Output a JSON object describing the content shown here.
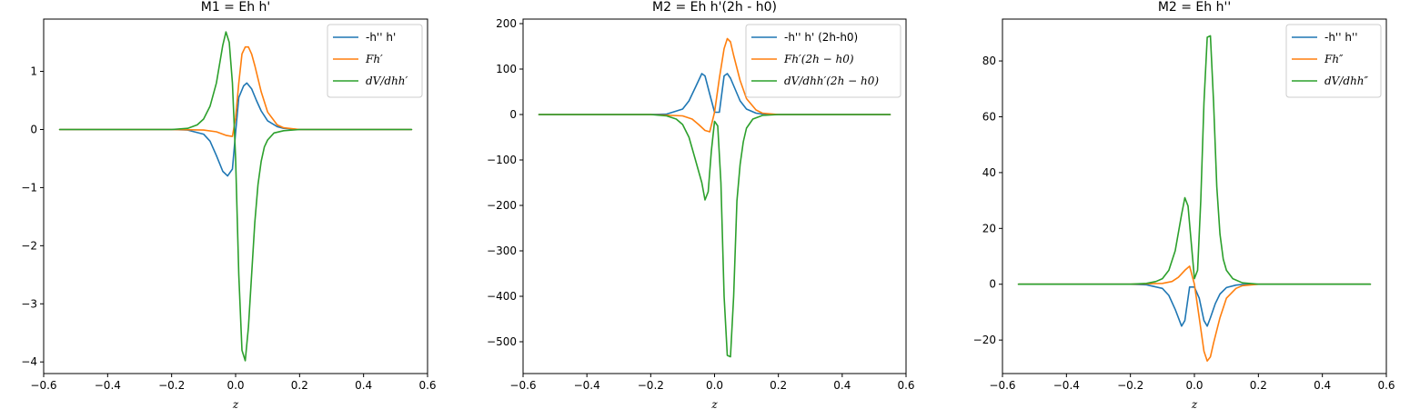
{
  "chart_data": [
    {
      "type": "line",
      "title": "M1 = Eh h'",
      "xlabel": "z",
      "xlim": [
        -0.6,
        0.6
      ],
      "ylim": [
        -4.2,
        1.9
      ],
      "xticks": [
        -0.6,
        -0.4,
        -0.2,
        0.0,
        0.2,
        0.4,
        0.6
      ],
      "xtick_labels": [
        "−0.6",
        "−0.4",
        "−0.2",
        "0.0",
        "0.2",
        "0.4",
        "0.6"
      ],
      "yticks": [
        -4,
        -3,
        -2,
        -1,
        0,
        1
      ],
      "ytick_labels": [
        "−4",
        "−3",
        "−2",
        "−1",
        "0",
        "1"
      ],
      "legend_position": "top-right",
      "series": [
        {
          "name": "-h'' h'",
          "math": false,
          "color": "#1f77b4",
          "x": [
            -0.55,
            -0.2,
            -0.15,
            -0.1,
            -0.08,
            -0.06,
            -0.04,
            -0.025,
            -0.01,
            0.0,
            0.01,
            0.025,
            0.035,
            0.05,
            0.065,
            0.08,
            0.1,
            0.13,
            0.15,
            0.2,
            0.55
          ],
          "y": [
            0,
            0,
            -0.01,
            -0.08,
            -0.2,
            -0.45,
            -0.72,
            -0.8,
            -0.68,
            -0.05,
            0.55,
            0.75,
            0.8,
            0.7,
            0.5,
            0.32,
            0.15,
            0.05,
            0.02,
            0,
            0
          ]
        },
        {
          "name": "Fh′",
          "math": true,
          "color": "#ff7f0e",
          "x": [
            -0.55,
            -0.2,
            -0.1,
            -0.06,
            -0.03,
            -0.01,
            0.0,
            0.01,
            0.02,
            0.03,
            0.04,
            0.05,
            0.06,
            0.08,
            0.1,
            0.13,
            0.15,
            0.2,
            0.55
          ],
          "y": [
            0,
            0,
            -0.01,
            -0.04,
            -0.1,
            -0.12,
            0.2,
            0.8,
            1.3,
            1.42,
            1.42,
            1.3,
            1.1,
            0.65,
            0.3,
            0.08,
            0.03,
            0,
            0
          ]
        },
        {
          "name": "dV/dhh′",
          "math": true,
          "color": "#2ca02c",
          "x": [
            -0.55,
            -0.2,
            -0.15,
            -0.12,
            -0.1,
            -0.08,
            -0.06,
            -0.04,
            -0.03,
            -0.02,
            -0.01,
            0.0,
            0.01,
            0.02,
            0.03,
            0.04,
            0.05,
            0.06,
            0.07,
            0.08,
            0.09,
            0.1,
            0.12,
            0.15,
            0.2,
            0.55
          ],
          "y": [
            0,
            0,
            0.02,
            0.08,
            0.18,
            0.4,
            0.8,
            1.45,
            1.68,
            1.5,
            0.8,
            -0.5,
            -2.5,
            -3.8,
            -3.98,
            -3.4,
            -2.5,
            -1.6,
            -0.95,
            -0.55,
            -0.3,
            -0.18,
            -0.06,
            -0.02,
            0,
            0
          ]
        }
      ]
    },
    {
      "type": "line",
      "title": "M2 = Eh h'(2h - h0)",
      "xlabel": "z",
      "xlim": [
        -0.6,
        0.6
      ],
      "ylim": [
        -570,
        210
      ],
      "xticks": [
        -0.6,
        -0.4,
        -0.2,
        0.0,
        0.2,
        0.4,
        0.6
      ],
      "xtick_labels": [
        "−0.6",
        "−0.4",
        "−0.2",
        "0.0",
        "0.2",
        "0.4",
        "0.6"
      ],
      "yticks": [
        -500,
        -400,
        -300,
        -200,
        -100,
        0,
        100,
        200
      ],
      "ytick_labels": [
        "−500",
        "−400",
        "−300",
        "−200",
        "−100",
        "0",
        "100",
        "200"
      ],
      "legend_position": "top-right",
      "series": [
        {
          "name": "-h'' h' (2h-h0)",
          "math": false,
          "color": "#1f77b4",
          "x": [
            -0.55,
            -0.2,
            -0.15,
            -0.1,
            -0.08,
            -0.06,
            -0.04,
            -0.03,
            -0.015,
            0.0,
            0.015,
            0.03,
            0.04,
            0.05,
            0.065,
            0.08,
            0.1,
            0.13,
            0.15,
            0.2,
            0.55
          ],
          "y": [
            0,
            0,
            1,
            12,
            30,
            60,
            90,
            85,
            45,
            5,
            5,
            85,
            90,
            80,
            55,
            30,
            12,
            3,
            1,
            0,
            0
          ]
        },
        {
          "name": "Fh′(2h − h0)",
          "math": true,
          "color": "#ff7f0e",
          "x": [
            -0.55,
            -0.2,
            -0.1,
            -0.07,
            -0.05,
            -0.03,
            -0.015,
            0.0,
            0.015,
            0.03,
            0.04,
            0.05,
            0.06,
            0.08,
            0.1,
            0.13,
            0.15,
            0.2,
            0.55
          ],
          "y": [
            0,
            0,
            -3,
            -10,
            -22,
            -35,
            -38,
            5,
            80,
            145,
            167,
            160,
            130,
            75,
            35,
            10,
            3,
            0,
            0
          ]
        },
        {
          "name": "dV/dhh′(2h − h0)",
          "math": true,
          "color": "#2ca02c",
          "x": [
            -0.55,
            -0.2,
            -0.15,
            -0.12,
            -0.1,
            -0.08,
            -0.06,
            -0.04,
            -0.03,
            -0.02,
            -0.01,
            0.0,
            0.01,
            0.02,
            0.03,
            0.04,
            0.05,
            0.06,
            0.07,
            0.08,
            0.09,
            0.1,
            0.12,
            0.15,
            0.2,
            0.55
          ],
          "y": [
            0,
            0,
            -3,
            -10,
            -22,
            -50,
            -100,
            -150,
            -188,
            -170,
            -80,
            -15,
            -25,
            -150,
            -400,
            -530,
            -533,
            -400,
            -190,
            -110,
            -60,
            -30,
            -10,
            -2,
            0,
            0
          ]
        }
      ]
    },
    {
      "type": "line",
      "title": "M2 = Eh h''",
      "xlabel": "z",
      "xlim": [
        -0.6,
        0.6
      ],
      "ylim": [
        -32,
        95
      ],
      "xticks": [
        -0.6,
        -0.4,
        -0.2,
        0.0,
        0.2,
        0.4,
        0.6
      ],
      "xtick_labels": [
        "−0.6",
        "−0.4",
        "−0.2",
        "0.0",
        "0.2",
        "0.4",
        "0.6"
      ],
      "yticks": [
        -20,
        0,
        20,
        40,
        60,
        80
      ],
      "ytick_labels": [
        "−20",
        "0",
        "20",
        "40",
        "60",
        "80"
      ],
      "legend_position": "top-right",
      "series": [
        {
          "name": "-h'' h''",
          "math": false,
          "color": "#1f77b4",
          "x": [
            -0.55,
            -0.2,
            -0.15,
            -0.1,
            -0.08,
            -0.06,
            -0.04,
            -0.03,
            -0.015,
            0.0,
            0.015,
            0.03,
            0.04,
            0.05,
            0.065,
            0.08,
            0.1,
            0.13,
            0.15,
            0.2,
            0.55
          ],
          "y": [
            0,
            0,
            -0.2,
            -1.5,
            -4,
            -9,
            -15,
            -13,
            -1,
            -1,
            -5,
            -13,
            -15,
            -12,
            -7,
            -3.5,
            -1.2,
            -0.3,
            -0.1,
            0,
            0
          ]
        },
        {
          "name": "Fh″",
          "math": true,
          "color": "#ff7f0e",
          "x": [
            -0.55,
            -0.2,
            -0.1,
            -0.07,
            -0.05,
            -0.03,
            -0.015,
            0.0,
            0.015,
            0.03,
            0.04,
            0.05,
            0.06,
            0.08,
            0.1,
            0.13,
            0.15,
            0.2,
            0.55
          ],
          "y": [
            0,
            0,
            0.3,
            1,
            2.5,
            5,
            6.5,
            0,
            -12,
            -24,
            -27.5,
            -26,
            -21,
            -12,
            -5,
            -1.5,
            -0.5,
            0,
            0
          ]
        },
        {
          "name": "dV/dhh″",
          "math": true,
          "color": "#2ca02c",
          "x": [
            -0.55,
            -0.2,
            -0.15,
            -0.12,
            -0.1,
            -0.08,
            -0.06,
            -0.04,
            -0.03,
            -0.02,
            -0.01,
            0.0,
            0.01,
            0.02,
            0.03,
            0.04,
            0.05,
            0.06,
            0.07,
            0.08,
            0.09,
            0.1,
            0.12,
            0.15,
            0.2,
            0.55
          ],
          "y": [
            0,
            0,
            0.3,
            1,
            2,
            5,
            12,
            25,
            31,
            28,
            15,
            2,
            5,
            30,
            65,
            88.5,
            89,
            65,
            35,
            18,
            9,
            5,
            2,
            0.5,
            0,
            0
          ]
        }
      ]
    }
  ]
}
